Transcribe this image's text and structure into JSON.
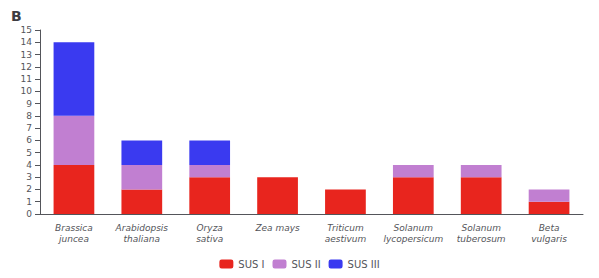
{
  "chart_data": {
    "type": "bar",
    "title": "B",
    "categories": [
      "Brassica\njuncea",
      "Arabidopsis\nthaliana",
      "Oryza\nsativa",
      "Zea mays",
      "Triticum\naestivum",
      "Solanum\nlycopersicum",
      "Solanum\ntuberosum",
      "Beta\nvulgaris"
    ],
    "series": [
      {
        "name": "SUS I",
        "color": "#e8251e",
        "values": [
          4,
          2,
          3,
          3,
          2,
          3,
          3,
          1
        ]
      },
      {
        "name": "SUS II",
        "color": "#c17fd1",
        "values": [
          4,
          2,
          1,
          0,
          0,
          1,
          1,
          1
        ]
      },
      {
        "name": "SUS III",
        "color": "#3a3af0",
        "values": [
          6,
          2,
          2,
          0,
          0,
          0,
          0,
          0
        ]
      }
    ],
    "stacked": true,
    "ylim": [
      0,
      15
    ],
    "yticks": [
      0,
      1,
      2,
      3,
      4,
      5,
      6,
      7,
      8,
      9,
      10,
      11,
      12,
      13,
      14,
      15
    ],
    "grid": false,
    "legend": "bottom"
  }
}
